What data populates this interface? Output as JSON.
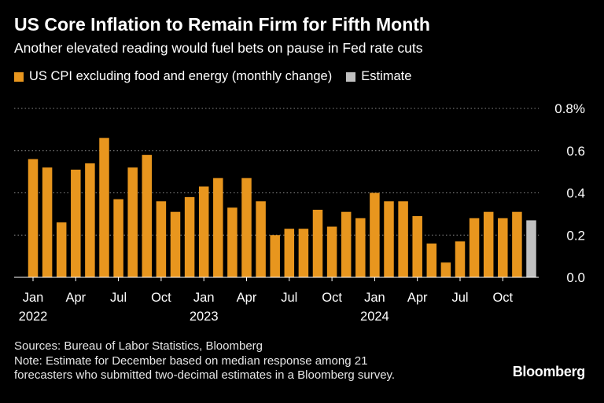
{
  "chart_data": {
    "type": "bar",
    "title": "US Core Inflation to Remain Firm for Fifth Month",
    "subtitle": "Another elevated reading would fuel bets on pause in Fed rate cuts",
    "series": [
      {
        "name": "US CPI excluding food and energy (monthly change)",
        "color": "#e8961e",
        "x": [
          "2022-01",
          "2022-02",
          "2022-03",
          "2022-04",
          "2022-05",
          "2022-06",
          "2022-07",
          "2022-08",
          "2022-09",
          "2022-10",
          "2022-11",
          "2022-12",
          "2023-01",
          "2023-02",
          "2023-03",
          "2023-04",
          "2023-05",
          "2023-06",
          "2023-07",
          "2023-08",
          "2023-09",
          "2023-10",
          "2023-11",
          "2023-12",
          "2024-01",
          "2024-02",
          "2024-03",
          "2024-04",
          "2024-05",
          "2024-06",
          "2024-07",
          "2024-08",
          "2024-09",
          "2024-10",
          "2024-11"
        ],
        "values": [
          0.56,
          0.52,
          0.26,
          0.51,
          0.54,
          0.66,
          0.37,
          0.52,
          0.58,
          0.36,
          0.31,
          0.38,
          0.43,
          0.47,
          0.33,
          0.47,
          0.36,
          0.2,
          0.23,
          0.23,
          0.32,
          0.24,
          0.31,
          0.28,
          0.4,
          0.36,
          0.36,
          0.29,
          0.16,
          0.07,
          0.17,
          0.28,
          0.31,
          0.28,
          0.31
        ]
      },
      {
        "name": "Estimate",
        "color": "#c0c0c0",
        "x": [
          "2024-12"
        ],
        "values": [
          0.27
        ]
      }
    ],
    "y_axis": {
      "min": 0,
      "max": 0.8,
      "ticks": [
        0.0,
        0.2,
        0.4,
        0.6,
        0.8
      ],
      "tick_labels": [
        "0.0",
        "0.2",
        "0.4",
        "0.6",
        "0.8%"
      ],
      "position": "right",
      "grid": "dotted"
    },
    "x_axis": {
      "tick_labels": [
        {
          "month_index": 0,
          "label": "Jan",
          "year": "2022"
        },
        {
          "month_index": 3,
          "label": "Apr",
          "year": ""
        },
        {
          "month_index": 6,
          "label": "Jul",
          "year": ""
        },
        {
          "month_index": 9,
          "label": "Oct",
          "year": ""
        },
        {
          "month_index": 12,
          "label": "Jan",
          "year": "2023"
        },
        {
          "month_index": 15,
          "label": "Apr",
          "year": ""
        },
        {
          "month_index": 18,
          "label": "Jul",
          "year": ""
        },
        {
          "month_index": 21,
          "label": "Oct",
          "year": ""
        },
        {
          "month_index": 24,
          "label": "Jan",
          "year": "2024"
        },
        {
          "month_index": 27,
          "label": "Apr",
          "year": ""
        },
        {
          "month_index": 30,
          "label": "Jul",
          "year": ""
        },
        {
          "month_index": 33,
          "label": "Oct",
          "year": ""
        }
      ]
    },
    "legend_position": "top-left"
  },
  "footer": {
    "sources": "Sources: Bureau of Labor Statistics, Bloomberg",
    "note_line1": "Note: Estimate for December based on median response among 21",
    "note_line2": "forecasters who submitted two-decimal estimates in a Bloomberg survey."
  },
  "brand": "Bloomberg"
}
